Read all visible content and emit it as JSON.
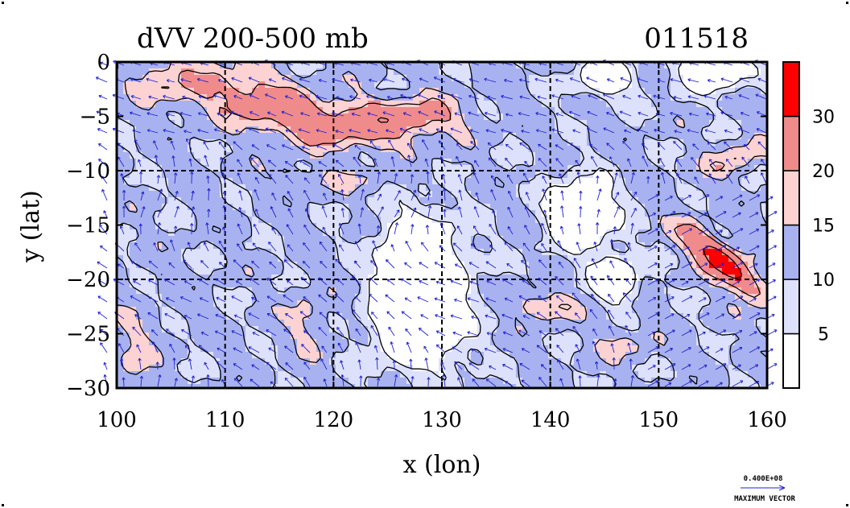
{
  "chart_data": {
    "type": "heatmap",
    "title": "dVV 200-500 mb",
    "date_label": "011518",
    "xlabel": "x (lon)",
    "ylabel": "y (lat)",
    "xlim": [
      100,
      160
    ],
    "ylim": [
      -30,
      0
    ],
    "x_ticks": [
      {
        "value": 100,
        "label": "100"
      },
      {
        "value": 110,
        "label": "110"
      },
      {
        "value": 120,
        "label": "120"
      },
      {
        "value": 130,
        "label": "130"
      },
      {
        "value": 140,
        "label": "140"
      },
      {
        "value": 150,
        "label": "150"
      },
      {
        "value": 160,
        "label": "160"
      }
    ],
    "y_ticks": [
      {
        "value": 0,
        "label": "0"
      },
      {
        "value": -5,
        "label": "−5"
      },
      {
        "value": -10,
        "label": "−10"
      },
      {
        "value": -15,
        "label": "−15"
      },
      {
        "value": -20,
        "label": "−20"
      },
      {
        "value": -25,
        "label": "−25"
      },
      {
        "value": -30,
        "label": "−30"
      }
    ],
    "grid_x": [
      110,
      120,
      130,
      140,
      150
    ],
    "grid_y": [
      -10,
      -20
    ],
    "grid_style": "dashed",
    "colorbar": {
      "placement": "right",
      "levels": [
        {
          "lo": 0,
          "hi": 5,
          "color": "#ffffff"
        },
        {
          "lo": 5,
          "hi": 10,
          "color": "#dde1fb"
        },
        {
          "lo": 10,
          "hi": 15,
          "color": "#a8b2f0"
        },
        {
          "lo": 15,
          "hi": 20,
          "color": "#fcd2d2"
        },
        {
          "lo": 20,
          "hi": 30,
          "color": "#f08b8b"
        },
        {
          "lo": 30,
          "hi": 40,
          "color": "#ff0000"
        }
      ],
      "tick_labels": [
        {
          "value": 5,
          "label": "5"
        },
        {
          "value": 10,
          "label": "10"
        },
        {
          "value": 15,
          "label": "15"
        },
        {
          "value": 20,
          "label": "20"
        },
        {
          "value": 30,
          "label": "30"
        }
      ]
    },
    "field_features": [
      {
        "lon": 113,
        "lat": -3.5,
        "value": 24,
        "slon": 7,
        "slat": 2.5,
        "rot": -0.3
      },
      {
        "lon": 121,
        "lat": -6,
        "value": 20,
        "slon": 6,
        "slat": 2,
        "rot": -0.1
      },
      {
        "lon": 127,
        "lat": -5,
        "value": 24,
        "slon": 5,
        "slat": 1.8,
        "rot": 0
      },
      {
        "lon": 104,
        "lat": -2,
        "value": 18,
        "slon": 3,
        "slat": 2,
        "rot": -0.3
      },
      {
        "lon": 156,
        "lat": -18.5,
        "value": 38,
        "slon": 4.5,
        "slat": 1.3,
        "rot": -0.7
      },
      {
        "lon": 157,
        "lat": -9,
        "value": 20,
        "slon": 3,
        "slat": 1.3,
        "rot": 0.4
      },
      {
        "lon": 139.5,
        "lat": -22.5,
        "value": 22,
        "slon": 3,
        "slat": 1.2,
        "rot": 0
      },
      {
        "lon": 101.5,
        "lat": -27,
        "value": 17,
        "slon": 2,
        "slat": 4,
        "rot": 0
      },
      {
        "lon": 117.5,
        "lat": -24,
        "value": 17,
        "slon": 2,
        "slat": 3,
        "rot": 0
      },
      {
        "lon": 147,
        "lat": -26,
        "value": 16,
        "slon": 3,
        "slat": 1.5,
        "rot": 0
      },
      {
        "lon": 119,
        "lat": -11,
        "value": 16,
        "slon": 6,
        "slat": 1,
        "rot": 0
      },
      {
        "lon": 128,
        "lat": -18,
        "value": -9,
        "slon": 3.5,
        "slat": 4,
        "rot": 0
      },
      {
        "lon": 128,
        "lat": -24,
        "value": -9,
        "slon": 4,
        "slat": 4,
        "rot": 0
      },
      {
        "lon": 143,
        "lat": -14,
        "value": -8,
        "slon": 3,
        "slat": 3,
        "rot": 0
      },
      {
        "lon": 146,
        "lat": -20,
        "value": -7,
        "slon": 2,
        "slat": 2,
        "rot": 0
      },
      {
        "lon": 155,
        "lat": -1,
        "value": -6,
        "slon": 3,
        "slat": 1.5,
        "rot": 0
      },
      {
        "lon": 145,
        "lat": -1.5,
        "value": -5,
        "slon": 2.5,
        "slat": 1.5,
        "rot": 0
      }
    ],
    "field_base_value": 11,
    "vector_reference": {
      "magnitude_label": "0.400E+08",
      "caption": "MAXIMUM VECTOR"
    },
    "colors": {
      "vector": "#2020d0",
      "contour": "#000000",
      "grid": "#000000",
      "frame": "#000000"
    }
  }
}
